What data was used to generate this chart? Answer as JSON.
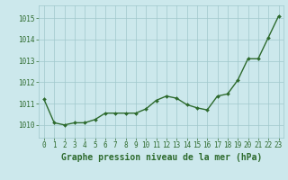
{
  "x": [
    0,
    1,
    2,
    3,
    4,
    5,
    6,
    7,
    8,
    9,
    10,
    11,
    12,
    13,
    14,
    15,
    16,
    17,
    18,
    19,
    20,
    21,
    22,
    23
  ],
  "y": [
    1011.2,
    1010.1,
    1010.0,
    1010.1,
    1010.1,
    1010.25,
    1010.55,
    1010.55,
    1010.55,
    1010.55,
    1010.75,
    1011.15,
    1011.35,
    1011.25,
    1010.95,
    1010.8,
    1010.7,
    1011.35,
    1011.45,
    1012.1,
    1013.1,
    1013.1,
    1014.1,
    1015.1
  ],
  "line_color": "#2d6a2d",
  "marker": "D",
  "marker_size": 2.0,
  "line_width": 1.0,
  "bg_color": "#cce8ec",
  "grid_color": "#a0c8cc",
  "tick_color": "#2d6a2d",
  "xlabel": "Graphe pression niveau de la mer (hPa)",
  "xlabel_color": "#2d6a2d",
  "xlabel_fontsize": 7.0,
  "ylim": [
    1009.4,
    1015.6
  ],
  "yticks": [
    1010,
    1011,
    1012,
    1013,
    1014,
    1015
  ],
  "xlim": [
    -0.5,
    23.5
  ],
  "xticks": [
    0,
    1,
    2,
    3,
    4,
    5,
    6,
    7,
    8,
    9,
    10,
    11,
    12,
    13,
    14,
    15,
    16,
    17,
    18,
    19,
    20,
    21,
    22,
    23
  ],
  "tick_fontsize": 5.5
}
